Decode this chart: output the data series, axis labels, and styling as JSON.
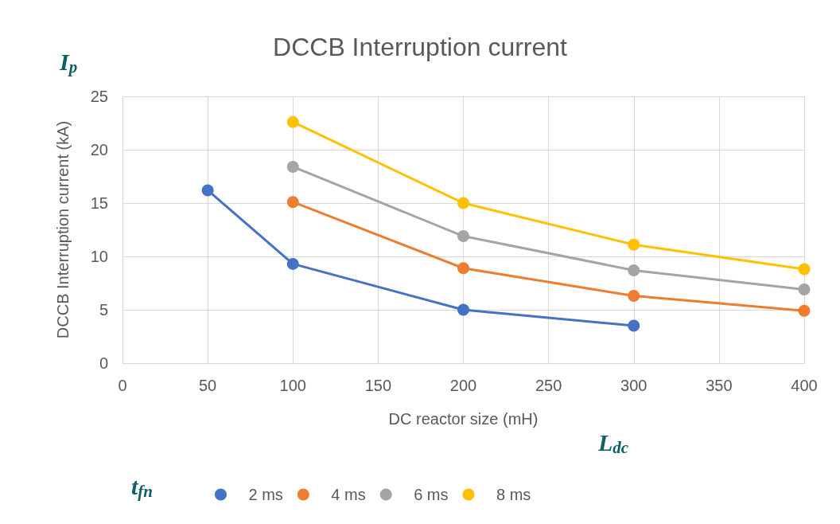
{
  "chart_data": {
    "type": "line",
    "title": "DCCB Interruption current",
    "xlabel": "DC reactor size (mH)",
    "ylabel": "DCCB Interruption current (kA)",
    "legend_title": "t$_{fn}$",
    "annotations": [
      "I$_{p}$",
      "L$_{dc}$"
    ],
    "series": [
      {
        "name": "2 ms",
        "color": "#4472c4",
        "x": [
          50,
          100,
          200,
          300
        ],
        "values": [
          16.2,
          9.3,
          5.0,
          3.5
        ]
      },
      {
        "name": "4 ms",
        "color": "#ed7d31",
        "x": [
          100,
          200,
          300,
          400
        ],
        "values": [
          15.1,
          8.9,
          6.3,
          4.9
        ]
      },
      {
        "name": "6 ms",
        "color": "#a5a5a5",
        "x": [
          100,
          200,
          300,
          400
        ],
        "values": [
          18.4,
          11.9,
          8.7,
          6.9
        ]
      },
      {
        "name": "8 ms",
        "color": "#ffc000",
        "x": [
          100,
          200,
          300,
          400
        ],
        "values": [
          22.6,
          15.0,
          11.1,
          8.8
        ]
      }
    ],
    "xlim": [
      0,
      400
    ],
    "xticks": [
      0,
      50,
      100,
      150,
      200,
      250,
      300,
      350,
      400
    ],
    "ylim": [
      0,
      25
    ],
    "yticks": [
      0,
      5,
      10,
      15,
      20,
      25
    ],
    "grid": true,
    "legend": "bottom",
    "marker": "circle",
    "line_style": "solid"
  }
}
